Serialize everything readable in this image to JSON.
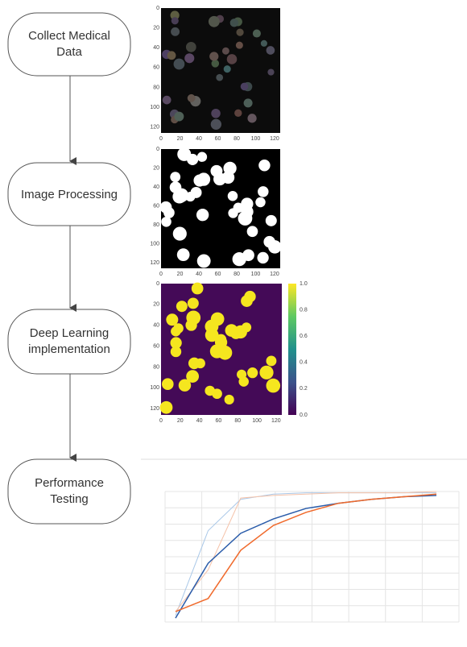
{
  "nodes": [
    {
      "label": "Collect Medical Data"
    },
    {
      "label": "Image Processing"
    },
    {
      "label": "Deep Learning implementation"
    },
    {
      "label": "Performance Testing"
    }
  ],
  "panels": [
    {
      "x_ticks": [
        "0",
        "20",
        "40",
        "60",
        "80",
        "100",
        "120"
      ],
      "y_ticks": [
        "0",
        "20",
        "40",
        "60",
        "80",
        "100",
        "120"
      ]
    },
    {
      "x_ticks": [
        "0",
        "20",
        "40",
        "60",
        "80",
        "100",
        "120"
      ],
      "y_ticks": [
        "0",
        "20",
        "40",
        "60",
        "80",
        "100",
        "120"
      ]
    },
    {
      "x_ticks": [
        "0",
        "20",
        "40",
        "60",
        "80",
        "100",
        "120"
      ],
      "y_ticks": [
        "0",
        "20",
        "40",
        "60",
        "80",
        "100",
        "120"
      ],
      "colorbar_ticks": [
        "1.0",
        "0.8",
        "0.6",
        "0.4",
        "0.2",
        "0.0"
      ]
    }
  ]
}
